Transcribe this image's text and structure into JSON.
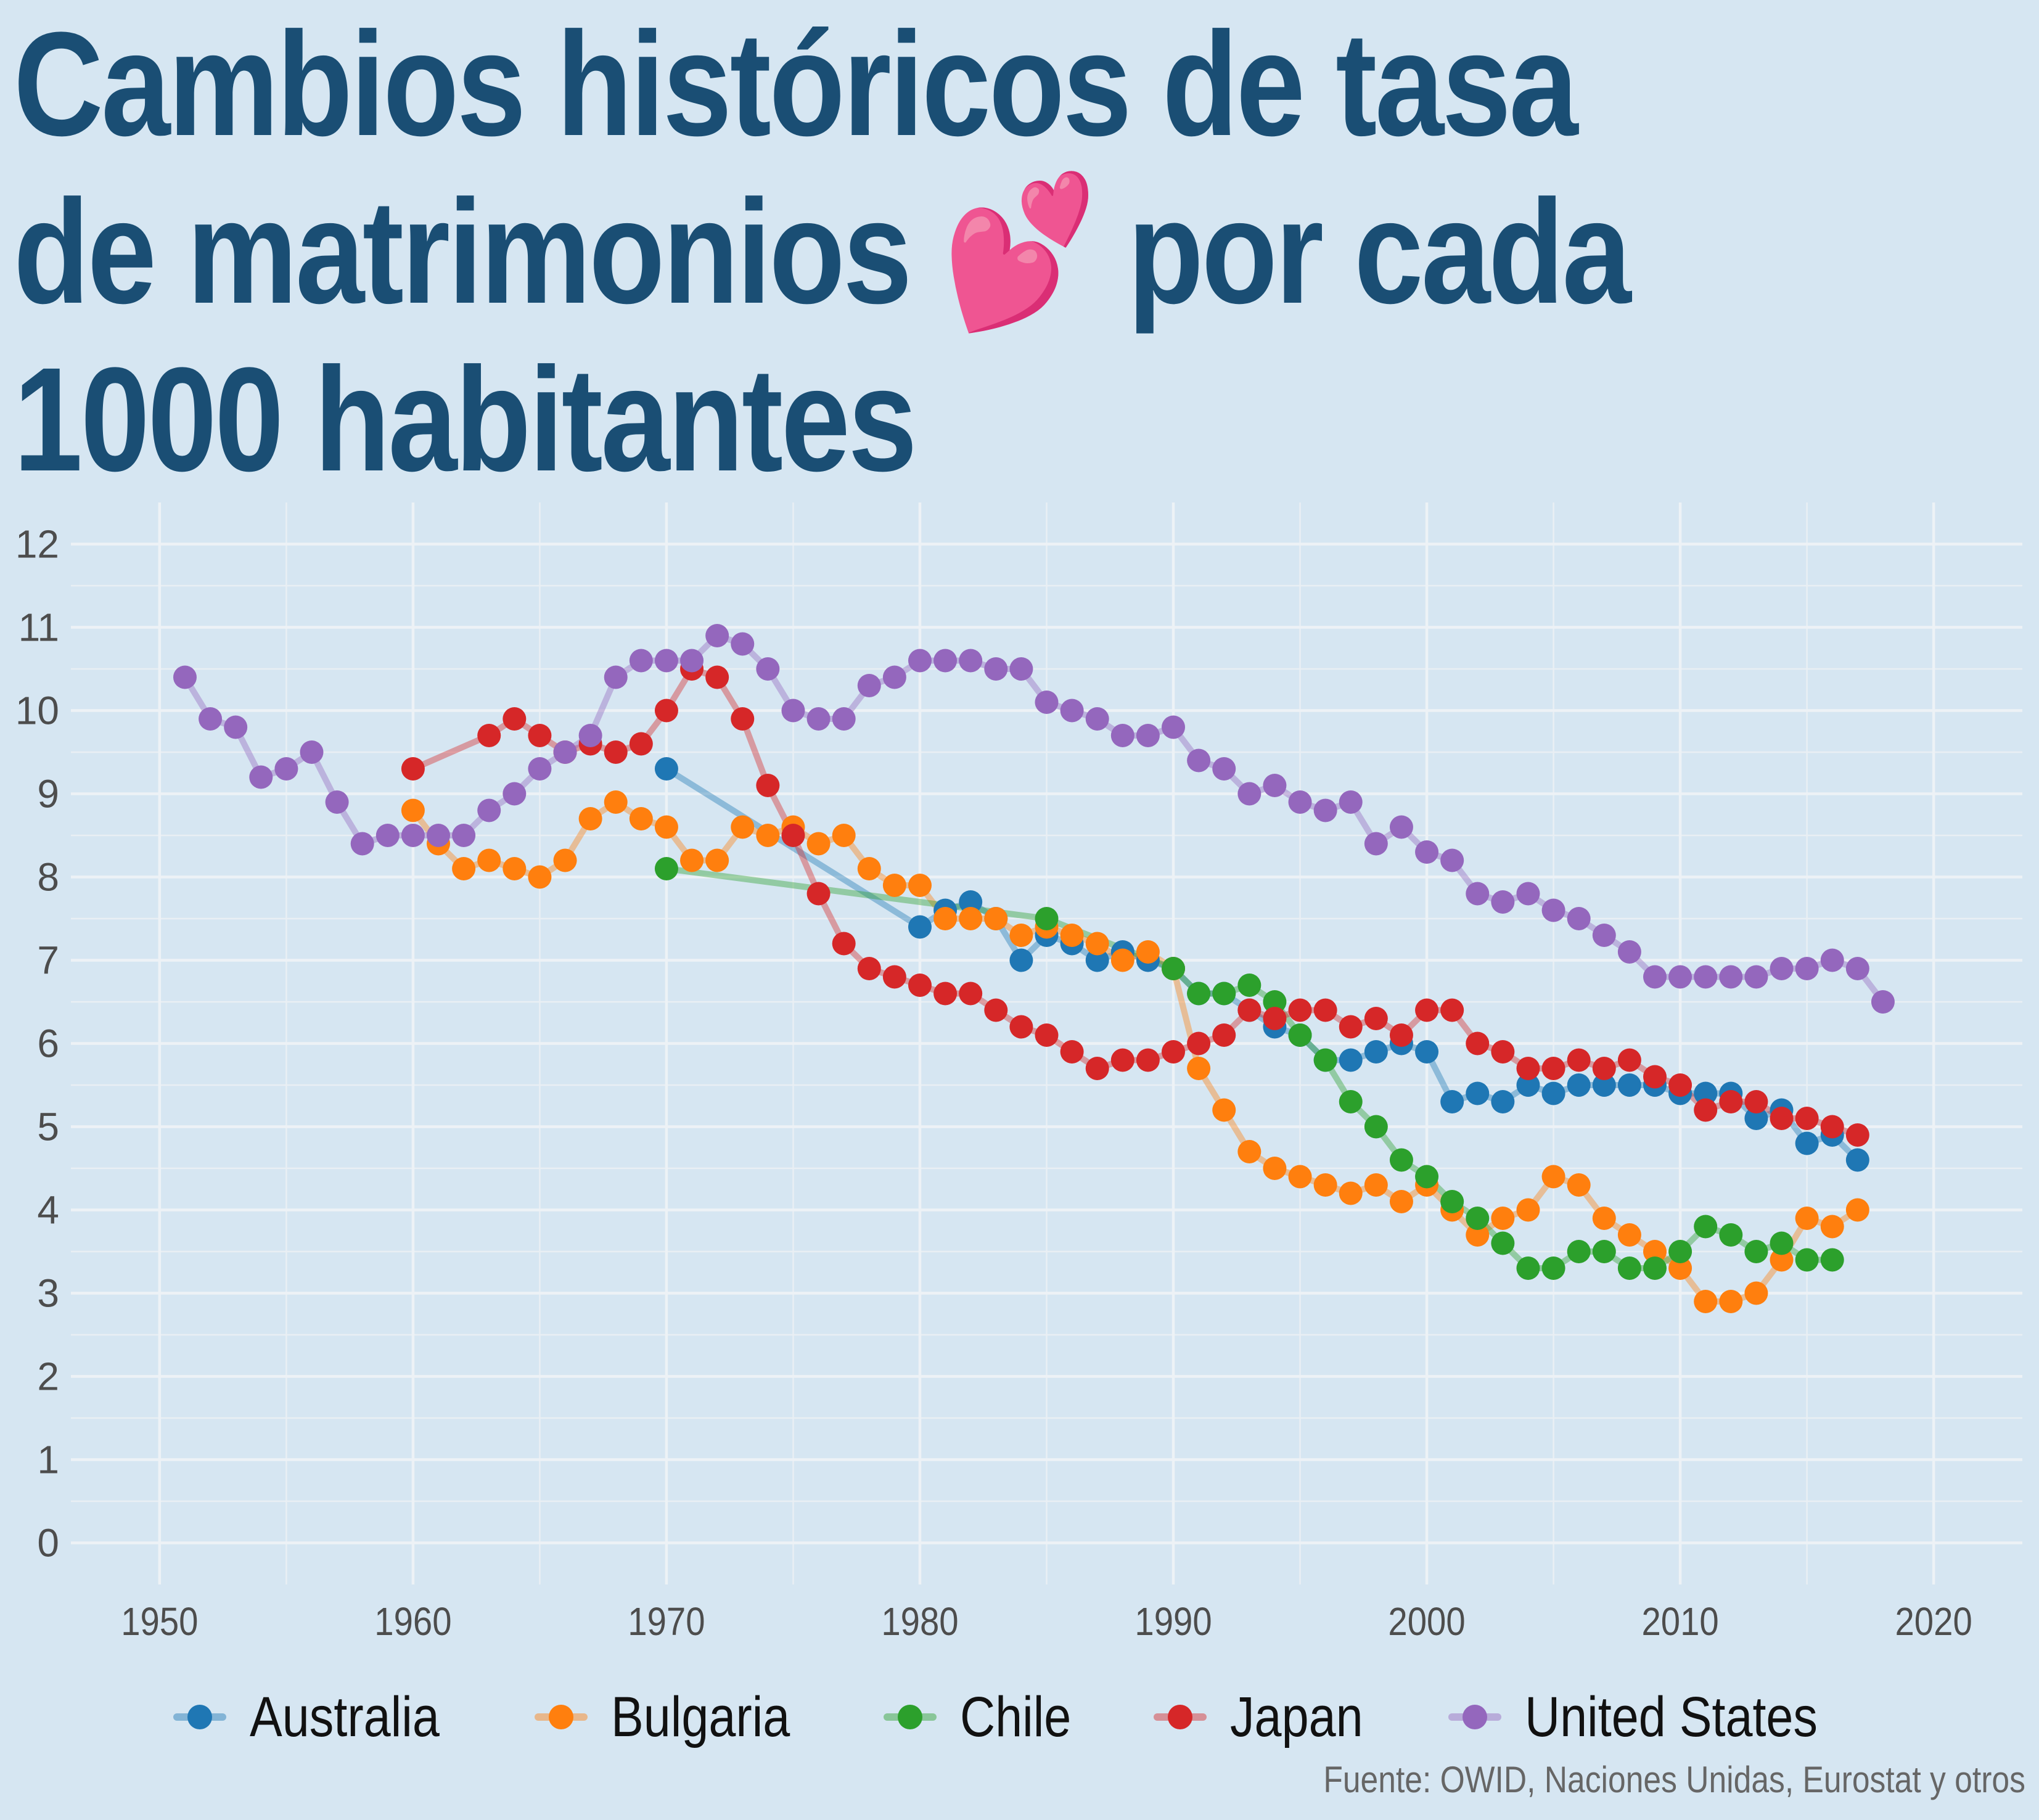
{
  "title_lines": [
    "Cambios históricos de tasa",
    "de matrimonios 💕 por cada",
    "1000 habitantes"
  ],
  "caption": "Fuente: OWID, Naciones Unidas, Eurostat y otros",
  "chart_data": {
    "type": "line",
    "title": "Cambios históricos de tasa de matrimonios 💕 por cada 1000 habitantes",
    "xlabel": "",
    "ylabel": "",
    "xlim": [
      1946.5,
      2023.5
    ],
    "ylim": [
      -0.5,
      12.5
    ],
    "x_ticks": [
      1950,
      1960,
      1970,
      1980,
      1990,
      2000,
      2010,
      2020
    ],
    "y_ticks": [
      0,
      1,
      2,
      3,
      4,
      5,
      6,
      7,
      8,
      9,
      10,
      11,
      12
    ],
    "grid": true,
    "legend_position": "bottom",
    "series": [
      {
        "name": "Australia",
        "color": "#1f77b4",
        "x": [
          1970,
          1980,
          1981,
          1982,
          1983,
          1984,
          1985,
          1986,
          1987,
          1988,
          1989,
          1990,
          1991,
          1992,
          1993,
          1994,
          1995,
          1996,
          1997,
          1998,
          1999,
          2000,
          2001,
          2002,
          2003,
          2004,
          2005,
          2006,
          2007,
          2008,
          2009,
          2010,
          2011,
          2012,
          2013,
          2014,
          2015,
          2016,
          2017
        ],
        "y": [
          9.3,
          7.4,
          7.6,
          7.7,
          7.5,
          7.0,
          7.3,
          7.2,
          7.0,
          7.1,
          7.0,
          6.9,
          6.6,
          6.6,
          6.4,
          6.2,
          6.1,
          5.8,
          5.8,
          5.9,
          6.0,
          5.9,
          5.3,
          5.4,
          5.3,
          5.5,
          5.4,
          5.5,
          5.5,
          5.5,
          5.5,
          5.4,
          5.4,
          5.4,
          5.1,
          5.2,
          4.8,
          4.9,
          4.6
        ]
      },
      {
        "name": "Bulgaria",
        "color": "#ff7f0e",
        "x": [
          1960,
          1961,
          1962,
          1963,
          1964,
          1965,
          1966,
          1967,
          1968,
          1969,
          1970,
          1971,
          1972,
          1973,
          1974,
          1975,
          1976,
          1977,
          1978,
          1979,
          1980,
          1981,
          1982,
          1983,
          1984,
          1985,
          1986,
          1987,
          1988,
          1989,
          1990,
          1991,
          1992,
          1993,
          1994,
          1995,
          1996,
          1997,
          1998,
          1999,
          2000,
          2001,
          2002,
          2003,
          2004,
          2005,
          2006,
          2007,
          2008,
          2009,
          2010,
          2011,
          2012,
          2013,
          2014,
          2015,
          2016,
          2017
        ],
        "y": [
          8.8,
          8.4,
          8.1,
          8.2,
          8.1,
          8.0,
          8.2,
          8.7,
          8.9,
          8.7,
          8.6,
          8.2,
          8.2,
          8.6,
          8.5,
          8.6,
          8.4,
          8.5,
          8.1,
          7.9,
          7.9,
          7.5,
          7.5,
          7.5,
          7.3,
          7.4,
          7.3,
          7.2,
          7.0,
          7.1,
          6.9,
          5.7,
          5.2,
          4.7,
          4.5,
          4.4,
          4.3,
          4.2,
          4.3,
          4.1,
          4.3,
          4.0,
          3.7,
          3.9,
          4.0,
          4.4,
          4.3,
          3.9,
          3.7,
          3.5,
          3.3,
          2.9,
          2.9,
          3.0,
          3.4,
          3.9,
          3.8,
          4.0
        ]
      },
      {
        "name": "Chile",
        "color": "#2ca02c",
        "x": [
          1970,
          1985,
          1990,
          1991,
          1992,
          1993,
          1994,
          1995,
          1996,
          1997,
          1998,
          1999,
          2000,
          2001,
          2002,
          2003,
          2004,
          2005,
          2006,
          2007,
          2008,
          2009,
          2010,
          2011,
          2012,
          2013,
          2014,
          2015,
          2016
        ],
        "y": [
          8.1,
          7.5,
          6.9,
          6.6,
          6.6,
          6.7,
          6.5,
          6.1,
          5.8,
          5.3,
          5.0,
          4.6,
          4.4,
          4.1,
          3.9,
          3.6,
          3.3,
          3.3,
          3.5,
          3.5,
          3.3,
          3.3,
          3.5,
          3.8,
          3.7,
          3.5,
          3.6,
          3.4,
          3.4
        ]
      },
      {
        "name": "Japan",
        "color": "#d62728",
        "x": [
          1960,
          1963,
          1964,
          1965,
          1966,
          1967,
          1968,
          1969,
          1970,
          1971,
          1972,
          1973,
          1974,
          1975,
          1976,
          1977,
          1978,
          1979,
          1980,
          1981,
          1982,
          1983,
          1984,
          1985,
          1986,
          1987,
          1988,
          1989,
          1990,
          1991,
          1992,
          1993,
          1994,
          1995,
          1996,
          1997,
          1998,
          1999,
          2000,
          2001,
          2002,
          2003,
          2004,
          2005,
          2006,
          2007,
          2008,
          2009,
          2010,
          2011,
          2012,
          2013,
          2014,
          2015,
          2016,
          2017
        ],
        "y": [
          9.3,
          9.7,
          9.9,
          9.7,
          9.5,
          9.6,
          9.5,
          9.6,
          10.0,
          10.5,
          10.4,
          9.9,
          9.1,
          8.5,
          7.8,
          7.2,
          6.9,
          6.8,
          6.7,
          6.6,
          6.6,
          6.4,
          6.2,
          6.1,
          5.9,
          5.7,
          5.8,
          5.8,
          5.9,
          6.0,
          6.1,
          6.4,
          6.3,
          6.4,
          6.4,
          6.2,
          6.3,
          6.1,
          6.4,
          6.4,
          6.0,
          5.9,
          5.7,
          5.7,
          5.8,
          5.7,
          5.8,
          5.6,
          5.5,
          5.2,
          5.3,
          5.3,
          5.1,
          5.1,
          5.0,
          4.9
        ]
      },
      {
        "name": "United States",
        "color": "#9467bd",
        "x": [
          1951,
          1952,
          1953,
          1954,
          1955,
          1956,
          1957,
          1958,
          1959,
          1960,
          1961,
          1962,
          1963,
          1964,
          1965,
          1966,
          1967,
          1968,
          1969,
          1970,
          1971,
          1972,
          1973,
          1974,
          1975,
          1976,
          1977,
          1978,
          1979,
          1980,
          1981,
          1982,
          1983,
          1984,
          1985,
          1986,
          1987,
          1988,
          1989,
          1990,
          1991,
          1992,
          1993,
          1994,
          1995,
          1996,
          1997,
          1998,
          1999,
          2000,
          2001,
          2002,
          2003,
          2004,
          2005,
          2006,
          2007,
          2008,
          2009,
          2010,
          2011,
          2012,
          2013,
          2014,
          2015,
          2016,
          2017,
          2018
        ],
        "y": [
          10.4,
          9.9,
          9.8,
          9.2,
          9.3,
          9.5,
          8.9,
          8.4,
          8.5,
          8.5,
          8.5,
          8.5,
          8.8,
          9.0,
          9.3,
          9.5,
          9.7,
          10.4,
          10.6,
          10.6,
          10.6,
          10.9,
          10.8,
          10.5,
          10.0,
          9.9,
          9.9,
          10.3,
          10.4,
          10.6,
          10.6,
          10.6,
          10.5,
          10.5,
          10.1,
          10.0,
          9.9,
          9.7,
          9.7,
          9.8,
          9.4,
          9.3,
          9.0,
          9.1,
          8.9,
          8.8,
          8.9,
          8.4,
          8.6,
          8.3,
          8.2,
          7.8,
          7.7,
          7.8,
          7.6,
          7.5,
          7.3,
          7.1,
          6.8,
          6.8,
          6.8,
          6.8,
          6.8,
          6.9,
          6.9,
          7.0,
          6.9,
          6.5
        ]
      }
    ]
  }
}
